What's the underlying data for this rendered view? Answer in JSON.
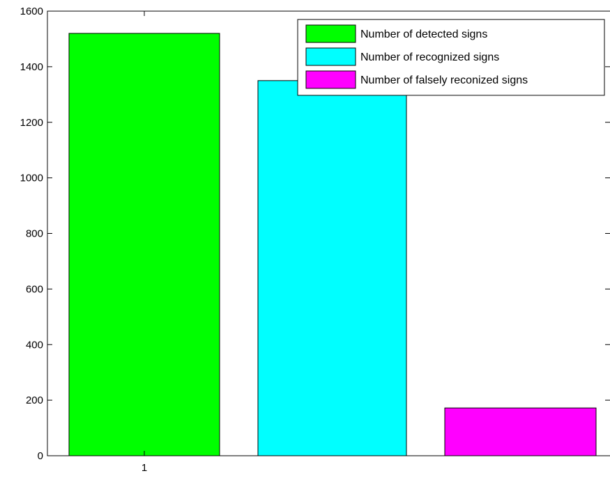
{
  "chart_data": {
    "type": "bar",
    "categories": [
      "1"
    ],
    "ylim": [
      0,
      1600
    ],
    "yticks": [
      0,
      200,
      400,
      600,
      800,
      1000,
      1200,
      1400,
      1600
    ],
    "grid": false,
    "legend_position": "top-right",
    "series": [
      {
        "name": "Number of detected signs",
        "values": [
          1520
        ],
        "color": "#00ff00"
      },
      {
        "name": "Number of recognized signs",
        "values": [
          1350
        ],
        "color": "#00ffff"
      },
      {
        "name": "Number of falsely reconized signs",
        "values": [
          172
        ],
        "color": "#ff00ff"
      }
    ]
  }
}
